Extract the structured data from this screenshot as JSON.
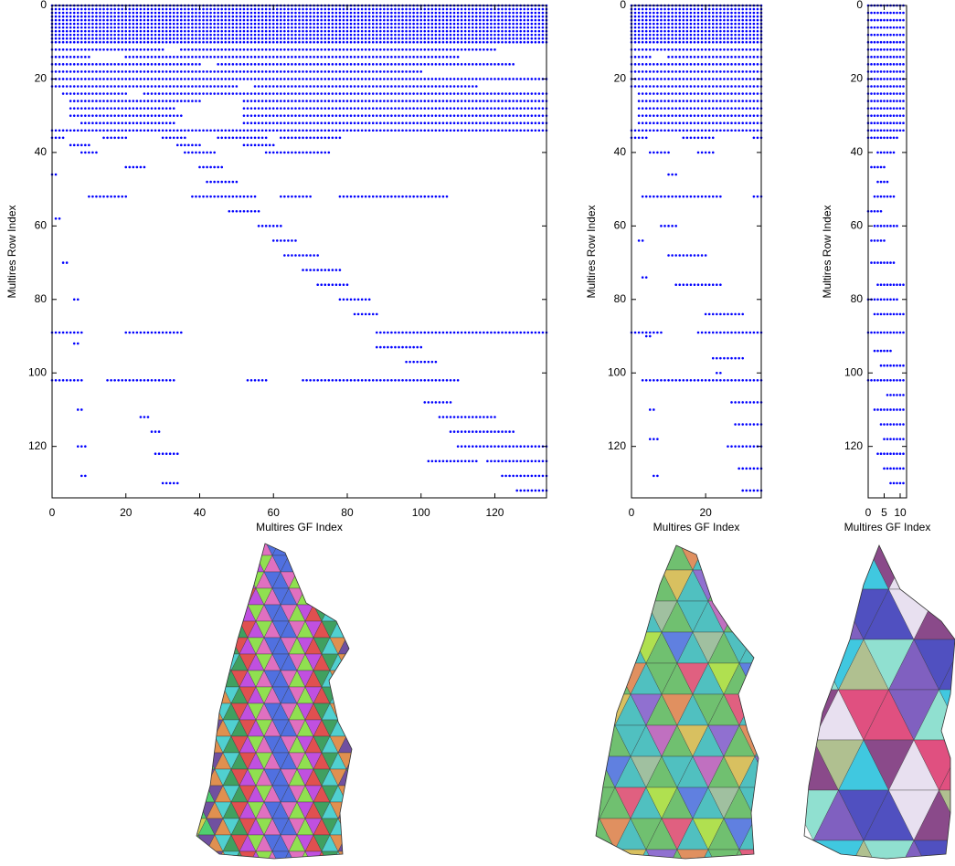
{
  "chart_data": [
    {
      "type": "spy",
      "xlabel": "Multires GF Index",
      "ylabel": "Multires Row Index",
      "color": "#0000ff",
      "xlim": [
        0,
        134
      ],
      "ylim": [
        134,
        0
      ],
      "xticks": [
        0,
        20,
        40,
        60,
        80,
        100,
        120
      ],
      "yticks": [
        0,
        20,
        40,
        60,
        80,
        100,
        120
      ],
      "segments": [
        [
          0,
          0,
          134
        ],
        [
          1,
          0,
          134
        ],
        [
          2,
          0,
          134
        ],
        [
          3,
          0,
          134
        ],
        [
          4,
          0,
          134
        ],
        [
          5,
          0,
          134
        ],
        [
          6,
          0,
          134
        ],
        [
          7,
          0,
          134
        ],
        [
          8,
          0,
          134
        ],
        [
          9,
          0,
          134
        ],
        [
          10,
          0,
          134
        ],
        [
          12,
          0,
          30
        ],
        [
          12,
          35,
          120
        ],
        [
          14,
          0,
          10
        ],
        [
          14,
          20,
          110
        ],
        [
          16,
          0,
          40
        ],
        [
          16,
          45,
          125
        ],
        [
          18,
          0,
          100
        ],
        [
          20,
          0,
          134
        ],
        [
          22,
          0,
          50
        ],
        [
          22,
          55,
          115
        ],
        [
          24,
          3,
          20
        ],
        [
          24,
          25,
          134
        ],
        [
          26,
          5,
          40
        ],
        [
          26,
          52,
          134
        ],
        [
          28,
          5,
          33
        ],
        [
          28,
          52,
          134
        ],
        [
          30,
          5,
          35
        ],
        [
          30,
          52,
          134
        ],
        [
          32,
          8,
          33
        ],
        [
          32,
          52,
          134
        ],
        [
          34,
          0,
          134
        ],
        [
          36,
          0,
          3
        ],
        [
          36,
          14,
          20
        ],
        [
          36,
          30,
          36
        ],
        [
          36,
          45,
          58
        ],
        [
          36,
          62,
          78
        ],
        [
          38,
          5,
          10
        ],
        [
          38,
          34,
          40
        ],
        [
          38,
          52,
          60
        ],
        [
          40,
          8,
          12
        ],
        [
          40,
          36,
          44
        ],
        [
          40,
          58,
          75
        ],
        [
          44,
          20,
          25
        ],
        [
          44,
          40,
          46
        ],
        [
          48,
          42,
          50
        ],
        [
          52,
          10,
          20
        ],
        [
          52,
          38,
          55
        ],
        [
          52,
          62,
          70
        ],
        [
          52,
          78,
          107
        ],
        [
          56,
          48,
          56
        ],
        [
          60,
          56,
          62
        ],
        [
          64,
          60,
          66
        ],
        [
          68,
          63,
          72
        ],
        [
          72,
          68,
          78
        ],
        [
          76,
          72,
          80
        ],
        [
          80,
          78,
          86
        ],
        [
          84,
          82,
          88
        ],
        [
          89,
          0,
          8
        ],
        [
          89,
          20,
          35
        ],
        [
          89,
          88,
          134
        ],
        [
          93,
          88,
          100
        ],
        [
          97,
          96,
          104
        ],
        [
          102,
          0,
          8
        ],
        [
          102,
          15,
          33
        ],
        [
          102,
          53,
          58
        ],
        [
          102,
          68,
          110
        ],
        [
          108,
          101,
          108
        ],
        [
          112,
          105,
          120
        ],
        [
          116,
          108,
          125
        ],
        [
          120,
          110,
          134
        ],
        [
          124,
          102,
          115
        ],
        [
          124,
          118,
          134
        ],
        [
          128,
          122,
          134
        ],
        [
          132,
          126,
          134
        ],
        [
          46,
          0,
          1
        ],
        [
          58,
          1,
          2
        ],
        [
          70,
          3,
          4
        ],
        [
          80,
          6,
          7
        ],
        [
          92,
          6,
          7
        ],
        [
          110,
          7,
          8
        ],
        [
          120,
          7,
          9
        ],
        [
          128,
          8,
          9
        ],
        [
          112,
          24,
          26
        ],
        [
          116,
          27,
          29
        ],
        [
          122,
          28,
          34
        ],
        [
          130,
          30,
          34
        ]
      ]
    },
    {
      "type": "spy",
      "xlabel": "Multires GF Index",
      "ylabel": "Multires Row Index",
      "color": "#0000ff",
      "xlim": [
        0,
        35
      ],
      "ylim": [
        134,
        0
      ],
      "xticks": [
        0,
        20
      ],
      "yticks": [
        0,
        20,
        40,
        60,
        80,
        100,
        120
      ],
      "segments": [
        [
          0,
          0,
          35
        ],
        [
          1,
          0,
          35
        ],
        [
          2,
          0,
          35
        ],
        [
          3,
          0,
          35
        ],
        [
          4,
          0,
          35
        ],
        [
          5,
          0,
          35
        ],
        [
          6,
          0,
          35
        ],
        [
          7,
          0,
          35
        ],
        [
          8,
          0,
          35
        ],
        [
          9,
          0,
          35
        ],
        [
          10,
          0,
          35
        ],
        [
          12,
          0,
          35
        ],
        [
          14,
          0,
          5
        ],
        [
          14,
          10,
          35
        ],
        [
          16,
          0,
          35
        ],
        [
          18,
          0,
          35
        ],
        [
          20,
          0,
          35
        ],
        [
          22,
          0,
          35
        ],
        [
          24,
          2,
          35
        ],
        [
          26,
          2,
          35
        ],
        [
          28,
          2,
          35
        ],
        [
          30,
          2,
          35
        ],
        [
          32,
          2,
          35
        ],
        [
          34,
          0,
          35
        ],
        [
          36,
          0,
          4
        ],
        [
          36,
          14,
          22
        ],
        [
          36,
          33,
          35
        ],
        [
          40,
          5,
          10
        ],
        [
          40,
          18,
          22
        ],
        [
          46,
          10,
          12
        ],
        [
          52,
          3,
          24
        ],
        [
          52,
          33,
          35
        ],
        [
          60,
          8,
          12
        ],
        [
          68,
          10,
          20
        ],
        [
          76,
          12,
          24
        ],
        [
          84,
          20,
          30
        ],
        [
          89,
          0,
          8
        ],
        [
          89,
          18,
          35
        ],
        [
          96,
          22,
          30
        ],
        [
          102,
          3,
          35
        ],
        [
          108,
          27,
          35
        ],
        [
          114,
          28,
          35
        ],
        [
          120,
          26,
          35
        ],
        [
          126,
          29,
          35
        ],
        [
          132,
          30,
          35
        ],
        [
          64,
          2,
          3
        ],
        [
          74,
          3,
          4
        ],
        [
          90,
          4,
          5
        ],
        [
          110,
          5,
          6
        ],
        [
          118,
          5,
          7
        ],
        [
          128,
          6,
          7
        ],
        [
          100,
          23,
          24
        ]
      ]
    },
    {
      "type": "spy",
      "xlabel": "Multires GF Index",
      "ylabel": "Multires Row Index",
      "color": "#0000ff",
      "xlim": [
        0,
        12
      ],
      "ylim": [
        134,
        0
      ],
      "xticks": [
        0,
        5,
        10
      ],
      "yticks": [
        0,
        20,
        40,
        60,
        80,
        100,
        120
      ],
      "segments": [
        [
          0,
          0,
          12
        ],
        [
          2,
          0,
          12
        ],
        [
          4,
          0,
          12
        ],
        [
          6,
          0,
          12
        ],
        [
          8,
          0,
          12
        ],
        [
          10,
          0,
          12
        ],
        [
          12,
          0,
          12
        ],
        [
          14,
          0,
          12
        ],
        [
          16,
          0,
          12
        ],
        [
          18,
          0,
          12
        ],
        [
          20,
          0,
          12
        ],
        [
          22,
          0,
          12
        ],
        [
          24,
          0,
          12
        ],
        [
          26,
          0,
          12
        ],
        [
          28,
          0,
          12
        ],
        [
          30,
          0,
          12
        ],
        [
          32,
          0,
          12
        ],
        [
          34,
          0,
          12
        ],
        [
          36,
          0,
          10
        ],
        [
          40,
          3,
          9
        ],
        [
          44,
          1,
          6
        ],
        [
          48,
          3,
          7
        ],
        [
          52,
          2,
          9
        ],
        [
          56,
          0,
          5
        ],
        [
          60,
          2,
          10
        ],
        [
          64,
          1,
          6
        ],
        [
          70,
          1,
          9
        ],
        [
          76,
          3,
          12
        ],
        [
          80,
          0,
          10
        ],
        [
          84,
          2,
          12
        ],
        [
          89,
          0,
          12
        ],
        [
          94,
          2,
          8
        ],
        [
          98,
          4,
          12
        ],
        [
          102,
          0,
          12
        ],
        [
          106,
          6,
          12
        ],
        [
          110,
          2,
          12
        ],
        [
          114,
          4,
          12
        ],
        [
          118,
          5,
          12
        ],
        [
          122,
          3,
          12
        ],
        [
          126,
          5,
          12
        ],
        [
          130,
          7,
          12
        ]
      ]
    }
  ]
}
